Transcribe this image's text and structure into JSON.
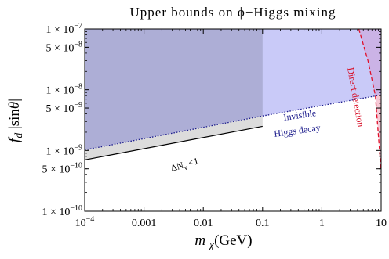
{
  "chart_data": {
    "type": "area",
    "title": "Upper bounds on ϕ−Higgs mixing",
    "xlabel": "m χ(GeV)",
    "ylabel": "f d |sinθ|",
    "xscale": "log",
    "yscale": "log",
    "xlim": [
      0.0001,
      10
    ],
    "ylim": [
      1e-10,
      1e-07
    ],
    "x_ticks": [
      {
        "value": 0.0001,
        "label": "10−4"
      },
      {
        "value": 0.001,
        "label": "0.001"
      },
      {
        "value": 0.01,
        "label": "0.01"
      },
      {
        "value": 0.1,
        "label": "0.1"
      },
      {
        "value": 1,
        "label": "1"
      },
      {
        "value": 10,
        "label": "10"
      }
    ],
    "y_ticks": [
      {
        "value": 1e-07,
        "label": "1 × 10−7"
      },
      {
        "value": 5e-08,
        "label": "5 × 10−8"
      },
      {
        "value": 1e-08,
        "label": "1 × 10−8"
      },
      {
        "value": 5e-09,
        "label": "5 × 10−9"
      },
      {
        "value": 1e-09,
        "label": "1 × 10−9"
      },
      {
        "value": 5e-10,
        "label": "5 × 10−10"
      },
      {
        "value": 1e-10,
        "label": "1 × 10−10"
      }
    ],
    "regions": [
      {
        "name": "Invisible Higgs decay",
        "color": "#c9caf8",
        "boundary": [
          [
            0.0001,
            1.02e-09
          ],
          [
            0.1,
            3.7e-09
          ],
          [
            4.0,
            7e-09
          ],
          [
            10,
            8.2e-09
          ]
        ]
      },
      {
        "name": "ΔNν <1",
        "color": "#dcdcdc",
        "boundary": [
          [
            0.0001,
            7e-10
          ],
          [
            0.1,
            2.5e-09
          ]
        ]
      },
      {
        "name": "Direct detection",
        "color": "#f6c9d6",
        "boundary": [
          [
            4.2,
            1e-07
          ],
          [
            6.0,
            3e-08
          ],
          [
            8.0,
            8e-09
          ],
          [
            10,
            4.5e-10
          ]
        ]
      }
    ],
    "annotations": [
      {
        "text": "Invisible",
        "color": "#1c1c8c"
      },
      {
        "text": "Higgs decay",
        "color": "#1c1c8c"
      },
      {
        "text": "Direct detection",
        "color": "#d8122a"
      },
      {
        "text": "ΔNν <1",
        "color": "#000000"
      }
    ],
    "colors": {
      "invisible": "#c9caf8",
      "invisible_overlap": "#adaed6",
      "delta_n": "#dcdcdc",
      "direct": "#f6c9d6",
      "direct_overlap": "#cbb3e6",
      "direct_line": "#e0102a",
      "invisible_line": "#1c1c8c"
    }
  }
}
